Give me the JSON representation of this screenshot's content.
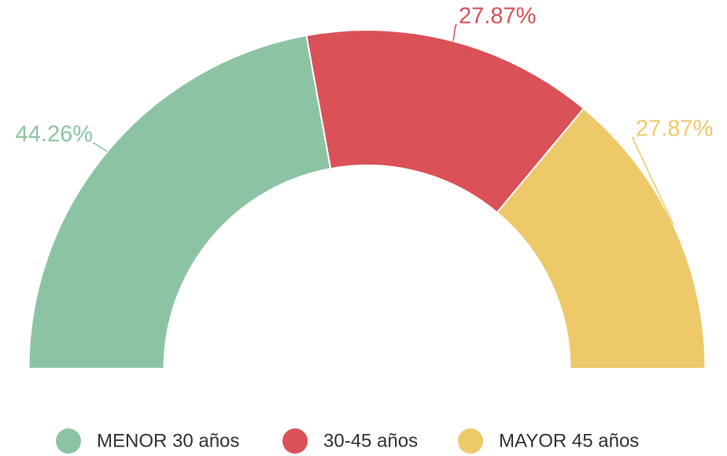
{
  "chart_data": {
    "type": "pie",
    "categories": [
      "MENOR 30 años",
      "30-45 años",
      "MAYOR 45 años"
    ],
    "values": [
      44.26,
      27.87,
      27.87
    ],
    "value_labels": [
      "44.26%",
      "27.87%",
      "27.87%"
    ],
    "colors": [
      "#8cc4a3",
      "#db5158",
      "#eec96a"
    ],
    "legend": "bottom"
  }
}
